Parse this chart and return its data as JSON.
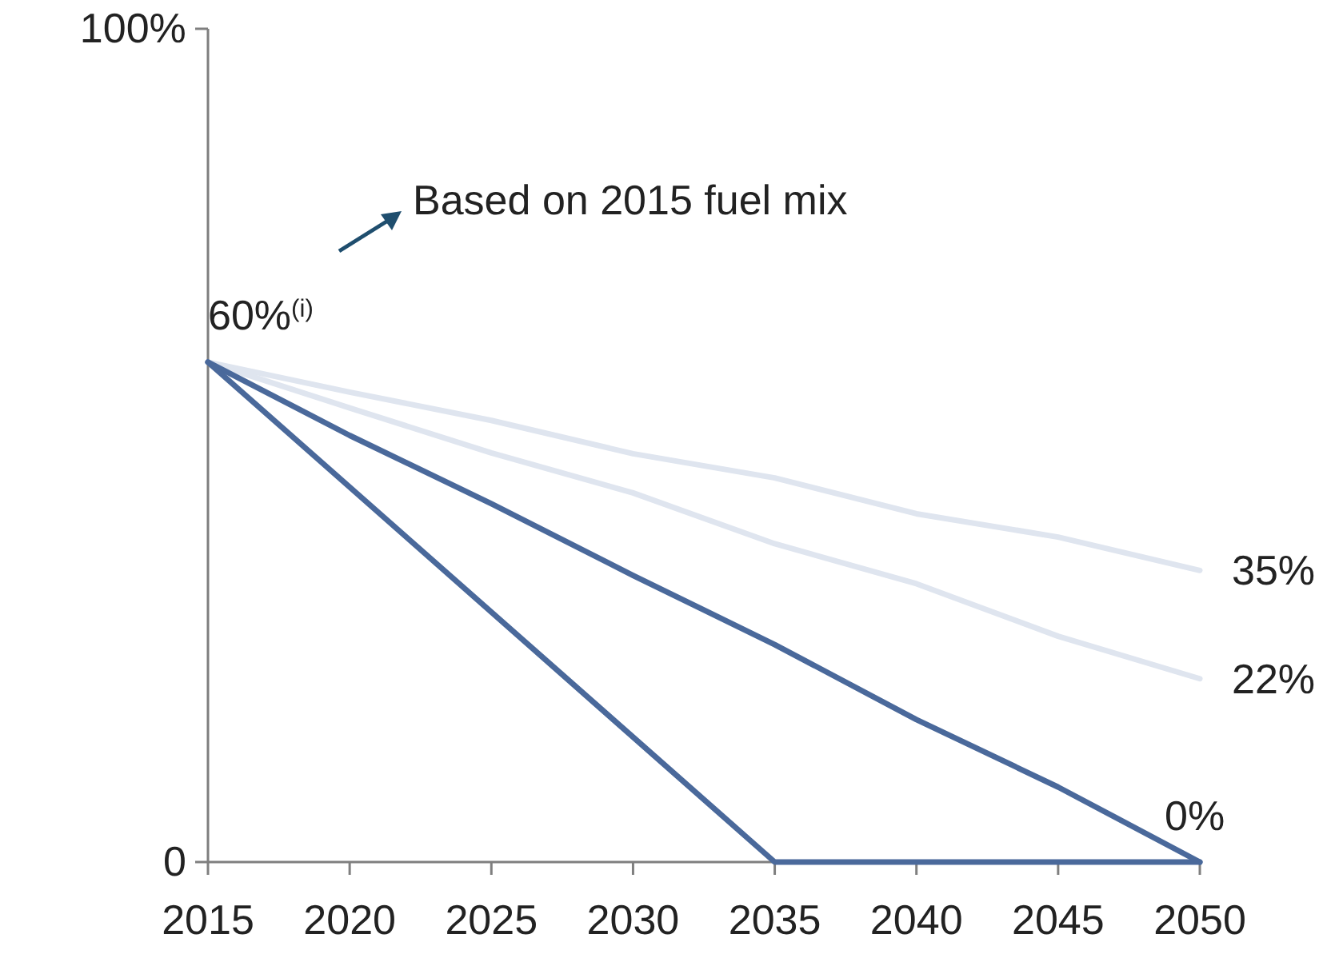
{
  "chart_data": {
    "type": "line",
    "xlim": [
      2015,
      2050
    ],
    "xticks": [
      2015,
      2020,
      2025,
      2030,
      2035,
      2040,
      2045,
      2050
    ],
    "ylim": [
      0,
      100
    ],
    "yticks": [
      {
        "value": 0,
        "label": "0"
      },
      {
        "value": 100,
        "label": "100%"
      }
    ],
    "grid": false,
    "marker": "none",
    "line_style": "solid",
    "series": [
      {
        "color": "#dfe5ef",
        "x": [
          2015,
          2020,
          2025,
          2030,
          2035,
          2040,
          2045,
          2050
        ],
        "values": [
          60,
          56.4,
          53,
          49,
          46.1,
          41.8,
          39,
          35
        ],
        "value_labels": [
          null,
          null,
          null,
          null,
          null,
          null,
          null,
          "35%"
        ]
      },
      {
        "color": "#dfe5ef",
        "x": [
          2015,
          2020,
          2025,
          2030,
          2035,
          2040,
          2045,
          2050
        ],
        "values": [
          60,
          54.5,
          49.1,
          44.3,
          38.2,
          33.4,
          27.1,
          22
        ],
        "value_labels": [
          null,
          null,
          null,
          null,
          null,
          null,
          null,
          "22%"
        ]
      },
      {
        "color": "#4a699b",
        "x": [
          2015,
          2020,
          2025,
          2030,
          2035,
          2040,
          2045,
          2050
        ],
        "values": [
          60,
          51.2,
          43,
          34.4,
          26.1,
          17.1,
          9,
          0
        ],
        "value_labels": [
          null,
          null,
          null,
          null,
          null,
          null,
          null,
          "0%"
        ]
      },
      {
        "color": "#4a699b",
        "x": [
          2015,
          2035,
          2050
        ],
        "values": [
          60,
          0,
          0
        ]
      }
    ],
    "annotations": [
      "60%$^{(i)}$",
      "Based on 2015 fuel mix"
    ]
  }
}
